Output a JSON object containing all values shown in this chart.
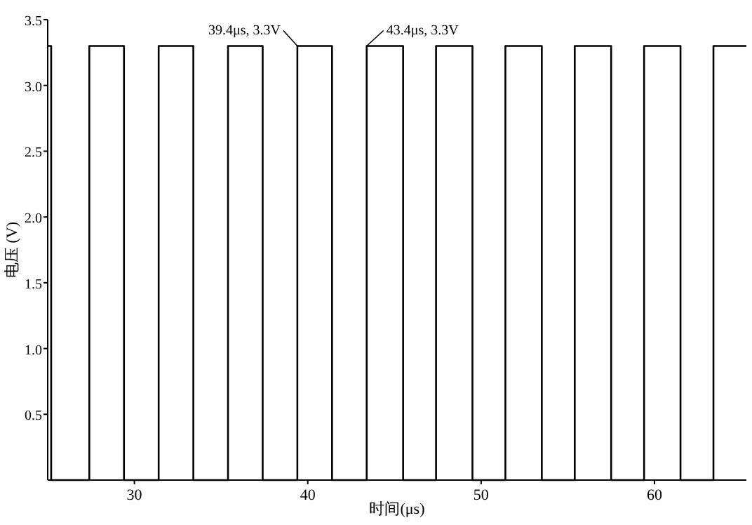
{
  "chart_data": {
    "type": "line",
    "xlabel": "时间(μs)",
    "ylabel": "电压 (V)",
    "color": "#000000",
    "x": [
      25,
      25.2,
      25.2,
      27.4,
      27.4,
      29.4,
      29.4,
      31.4,
      31.4,
      33.4,
      33.4,
      35.4,
      35.4,
      37.4,
      37.4,
      39.4,
      39.4,
      41.4,
      41.4,
      43.4,
      43.4,
      45.5,
      45.5,
      47.4,
      47.4,
      49.5,
      49.5,
      51.4,
      51.4,
      53.5,
      53.5,
      55.4,
      55.4,
      57.5,
      57.5,
      59.4,
      59.4,
      61.5,
      61.5,
      63.4,
      63.4,
      65.3
    ],
    "values": [
      3.3,
      3.3,
      0,
      0,
      3.3,
      3.3,
      0,
      0,
      3.3,
      3.3,
      0,
      0,
      3.3,
      3.3,
      0,
      0,
      3.3,
      3.3,
      0,
      0,
      3.3,
      3.3,
      0,
      0,
      3.3,
      3.3,
      0,
      0,
      3.3,
      3.3,
      0,
      0,
      3.3,
      3.3,
      0,
      0,
      3.3,
      3.3,
      0,
      0,
      3.3,
      3.3
    ],
    "xlim": [
      25,
      65.3
    ],
    "ylim": [
      0,
      3.5
    ],
    "xticks": [
      30,
      40,
      50,
      60
    ],
    "yticks": [
      0.5,
      {
        "value": 1,
        "label": "1.0"
      },
      1.5,
      {
        "value": 2,
        "label": "2.0"
      },
      2.5,
      {
        "value": 3,
        "label": "3.0"
      },
      3.5
    ],
    "annotations": [
      {
        "text": "39.4μs, 3.3V",
        "x": 39.4,
        "y": 3.3
      },
      {
        "text": "43.4μs, 3.3V",
        "x": 43.4,
        "y": 3.3
      }
    ]
  }
}
